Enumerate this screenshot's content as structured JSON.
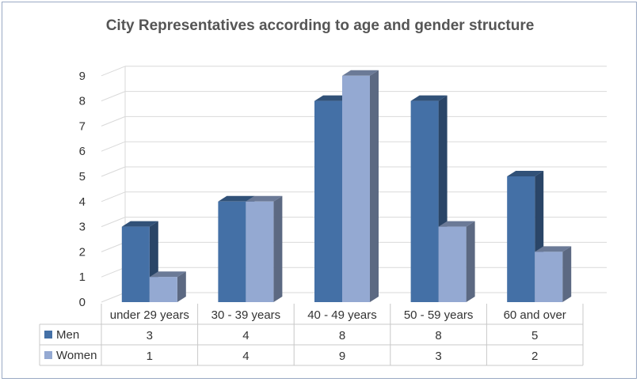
{
  "chart_data": {
    "type": "bar",
    "title": "City Representatives according to age and gender structure",
    "categories": [
      "under 29 years",
      "30 - 39 years",
      "40 - 49 years",
      "50 - 59 years",
      "60 and over"
    ],
    "series": [
      {
        "name": "Men",
        "values": [
          3,
          4,
          8,
          8,
          5
        ],
        "color": "#4470a6"
      },
      {
        "name": "Women",
        "values": [
          1,
          4,
          9,
          3,
          2
        ],
        "color": "#94a9d2"
      }
    ],
    "yticks": [
      "0",
      "1",
      "2",
      "3",
      "4",
      "5",
      "6",
      "7",
      "8",
      "9"
    ],
    "ylim": [
      0,
      9
    ],
    "grid": true,
    "legend": "data-table",
    "three_d": true
  }
}
